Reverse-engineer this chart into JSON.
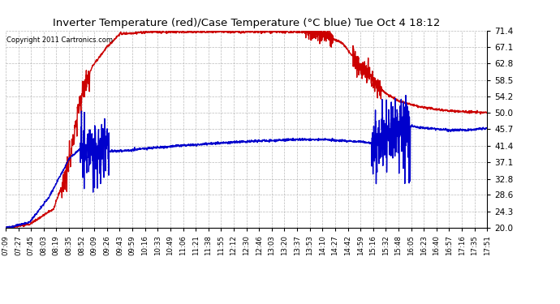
{
  "title": "Inverter Temperature (red)/Case Temperature (°C blue) Tue Oct 4 18:12",
  "copyright_text": "Copyright 2011 Cartronics.com",
  "background_color": "#ffffff",
  "plot_bg_color": "#ffffff",
  "grid_color": "#aaaaaa",
  "ylim": [
    20.0,
    71.4
  ],
  "yticks": [
    20.0,
    24.3,
    28.6,
    32.8,
    37.1,
    41.4,
    45.7,
    50.0,
    54.2,
    58.5,
    62.8,
    67.1,
    71.4
  ],
  "xtick_labels": [
    "07:09",
    "07:27",
    "07:45",
    "08:03",
    "08:19",
    "08:35",
    "08:52",
    "09:09",
    "09:26",
    "09:43",
    "09:59",
    "10:16",
    "10:33",
    "10:49",
    "11:06",
    "11:21",
    "11:38",
    "11:55",
    "12:12",
    "12:30",
    "12:46",
    "13:03",
    "13:20",
    "13:37",
    "13:53",
    "14:10",
    "14:27",
    "14:42",
    "14:59",
    "15:16",
    "15:32",
    "15:48",
    "16:05",
    "16:23",
    "16:40",
    "16:57",
    "17:16",
    "17:35",
    "17:51"
  ],
  "red_line_color": "#cc0000",
  "blue_line_color": "#0000cc",
  "line_width": 1.0,
  "n_xticks": 39
}
